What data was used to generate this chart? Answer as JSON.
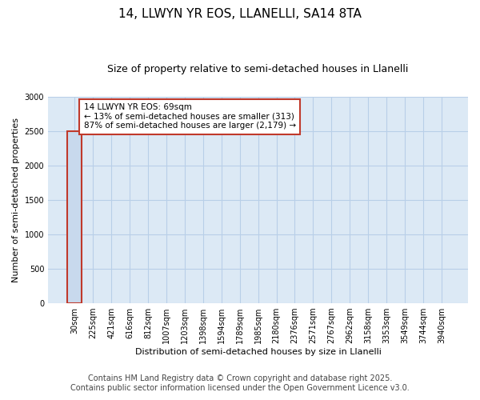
{
  "title": "14, LLWYN YR EOS, LLANELLI, SA14 8TA",
  "subtitle": "Size of property relative to semi-detached houses in Llanelli",
  "xlabel": "Distribution of semi-detached houses by size in Llanelli",
  "ylabel": "Number of semi-detached properties",
  "bar_labels": [
    "30sqm",
    "225sqm",
    "421sqm",
    "616sqm",
    "812sqm",
    "1007sqm",
    "1203sqm",
    "1398sqm",
    "1594sqm",
    "1789sqm",
    "1985sqm",
    "2180sqm",
    "2376sqm",
    "2571sqm",
    "2767sqm",
    "2962sqm",
    "3158sqm",
    "3353sqm",
    "3549sqm",
    "3744sqm",
    "3940sqm"
  ],
  "bar_values": [
    2492,
    0,
    0,
    0,
    0,
    0,
    0,
    0,
    0,
    0,
    0,
    0,
    0,
    0,
    0,
    0,
    0,
    0,
    0,
    0,
    0
  ],
  "bar_color": "#c8d9ed",
  "bar_edge_color": "#5b9bd5",
  "highlight_bar_index": 0,
  "highlight_bar_edge_color": "#c0392b",
  "annotation_text": "14 LLWYN YR EOS: 69sqm\n← 13% of semi-detached houses are smaller (313)\n87% of semi-detached houses are larger (2,179) →",
  "annotation_box_color": "#ffffff",
  "annotation_box_edge_color": "#c0392b",
  "ylim": [
    0,
    3000
  ],
  "yticks": [
    0,
    500,
    1000,
    1500,
    2000,
    2500,
    3000
  ],
  "grid_color": "#b8cfe8",
  "bg_color": "#dce9f5",
  "footer_line1": "Contains HM Land Registry data © Crown copyright and database right 2025.",
  "footer_line2": "Contains public sector information licensed under the Open Government Licence v3.0.",
  "title_fontsize": 11,
  "subtitle_fontsize": 9,
  "ylabel_fontsize": 8,
  "xlabel_fontsize": 8,
  "tick_fontsize": 7,
  "footer_fontsize": 7
}
